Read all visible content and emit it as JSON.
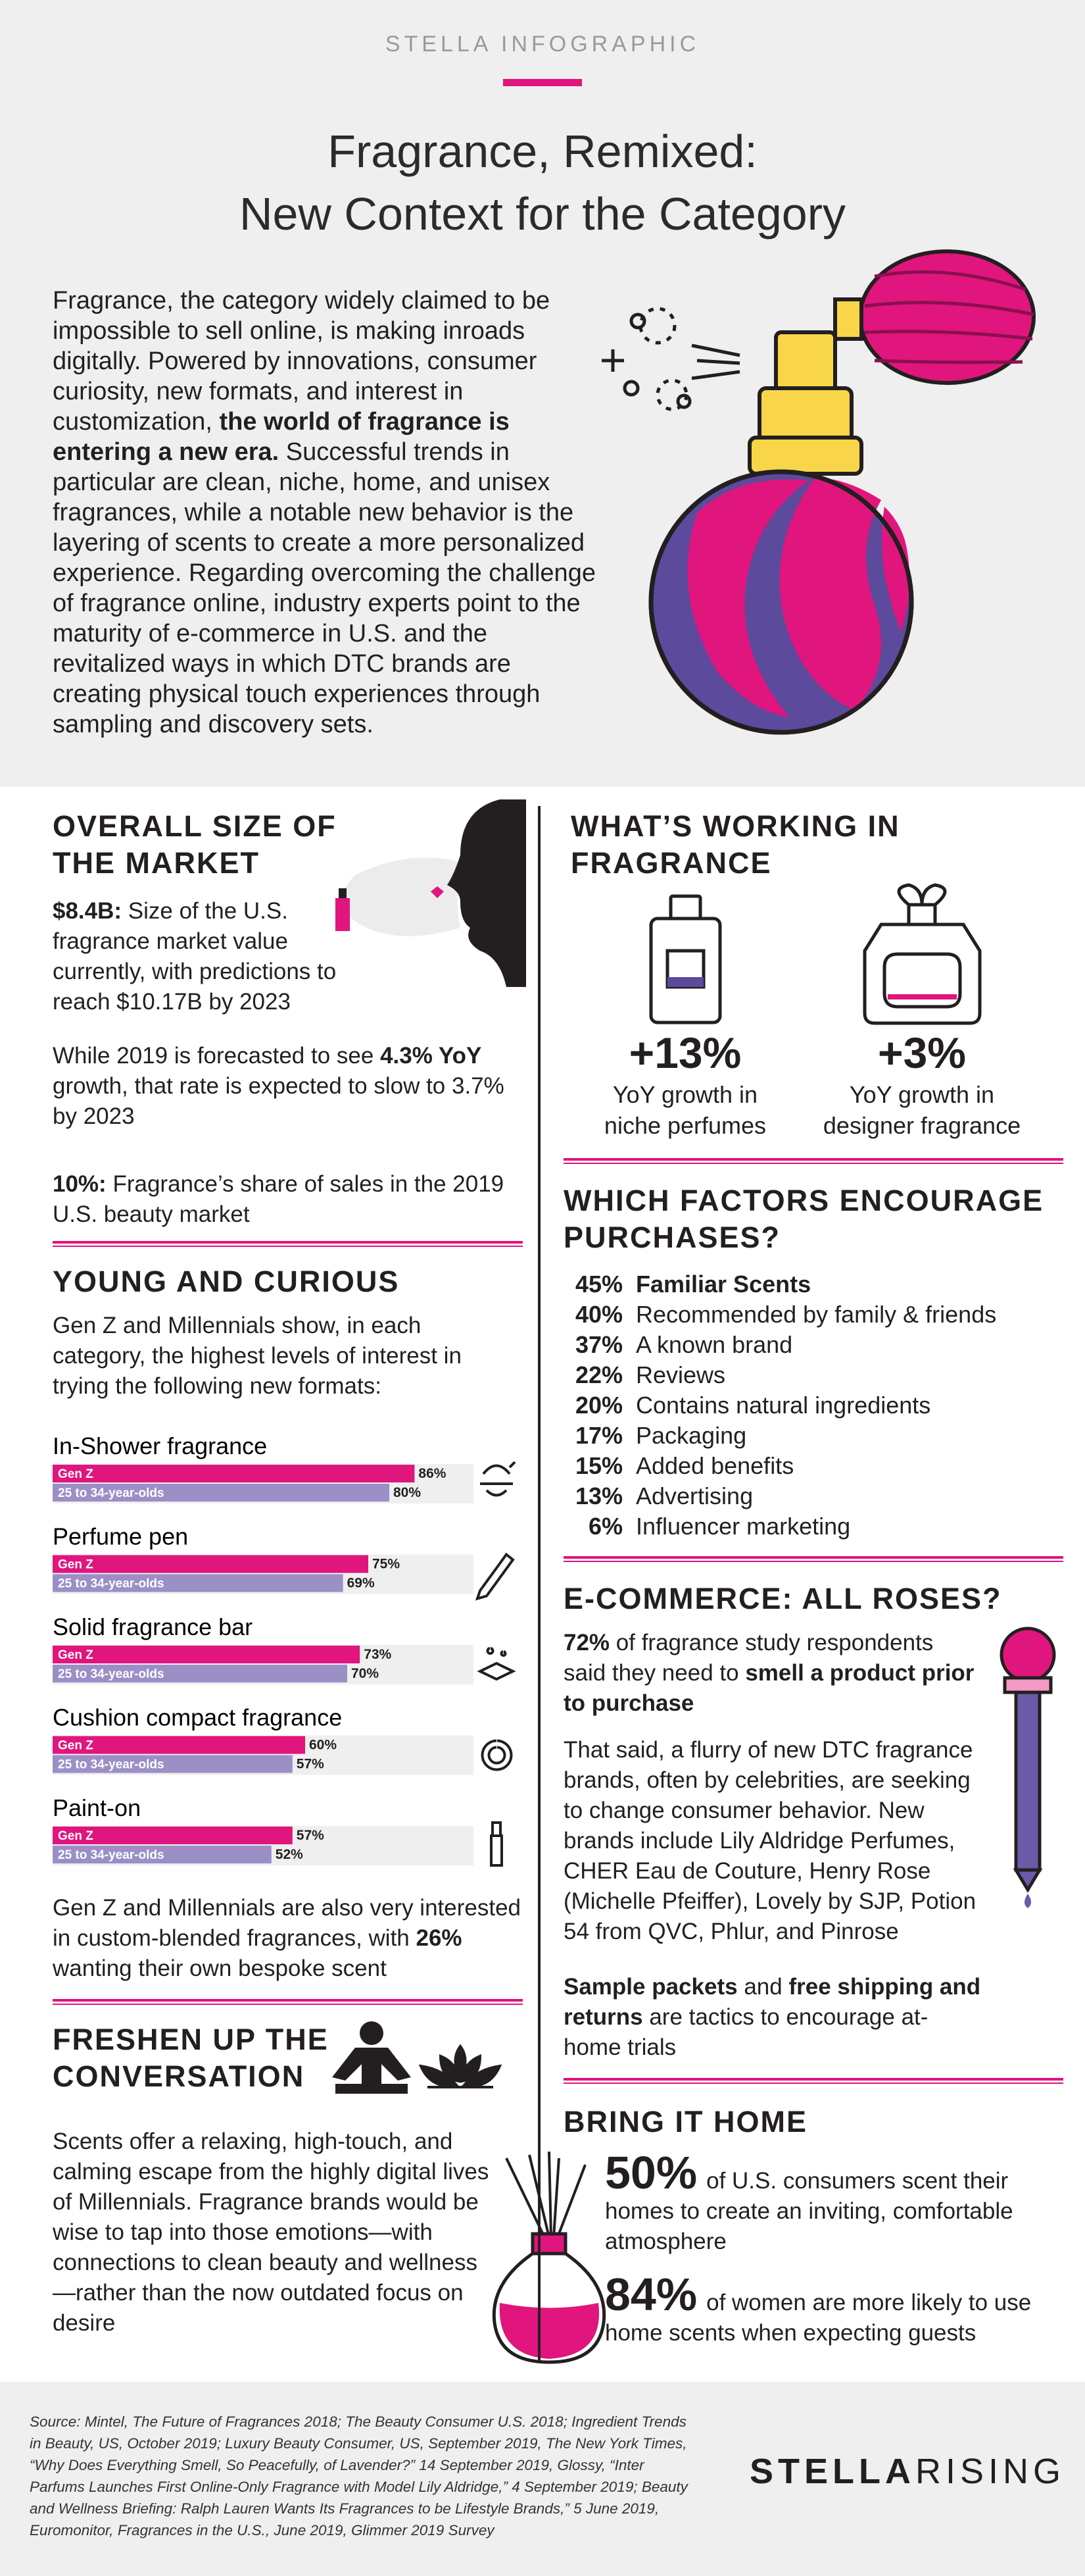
{
  "header": {
    "brand": "STELLA INFOGRAPHIC",
    "title_lines": [
      "Fragrance, Remixed:",
      "New Context for the Category"
    ],
    "intro": [
      "Fragrance, the category widely claimed to be impossible to sell online, is making inroads digitally. Powered by innovations, consumer curiosity, new formats, and interest in customization, ",
      {
        "strong": "the world of fragrance is entering a new era."
      },
      " Successful trends in particular are clean, niche, home, and unisex fragrances, while a notable new behavior is the layering of scents to create a more personalized experience. Regarding overcoming the challenge of fragrance online, industry experts point to the maturity of e-commerce in U.S. and the revitalized ways in which DTC brands are creating physical touch experiences through sampling and discovery sets."
    ]
  },
  "market": {
    "heading_lines": [
      "OVERALL SIZE OF",
      "THE MARKET"
    ],
    "paragraphs": [
      [
        {
          "strong": "$8.4B:"
        },
        " Size of the U.S. fragrance market value currently, with predictions to reach $10.17B by 2023"
      ],
      [
        "While 2019 is forecasted to see ",
        {
          "strong": "4.3% YoY"
        },
        " growth, that rate is expected to slow to 3.7% by 2023"
      ],
      [
        {
          "strong": "10%:"
        },
        " Fragrance’s share of sales in the 2019 U.S. beauty market"
      ]
    ]
  },
  "young": {
    "heading": "YOUNG AND CURIOUS",
    "intro": [
      "Gen Z and Millennials show, in each category, the highest levels of interest in trying the following new formats:"
    ],
    "series": [
      "Gen Z",
      "25 to 34-year-olds"
    ],
    "formats": [
      {
        "name": "In-Shower fragrance",
        "values": [
          86,
          80
        ],
        "value_labels": [
          "86%",
          "80%"
        ]
      },
      {
        "name": "Perfume pen",
        "values": [
          75,
          69
        ],
        "value_labels": [
          "75%",
          "69%"
        ]
      },
      {
        "name": "Solid fragrance bar",
        "values": [
          73,
          70
        ],
        "value_labels": [
          "73%",
          "70%"
        ]
      },
      {
        "name": "Cushion compact fragrance",
        "values": [
          60,
          57
        ],
        "value_labels": [
          "60%",
          "57%"
        ]
      },
      {
        "name": "Paint-on",
        "values": [
          57,
          52
        ],
        "value_labels": [
          "57%",
          "52%"
        ]
      }
    ],
    "note": [
      "Gen Z and Millennials are also very interested in custom-blended fragrances, with ",
      {
        "strong": "26%"
      },
      " wanting their own bespoke scent"
    ]
  },
  "freshen": {
    "heading_lines": [
      "FRESHEN UP THE",
      "CONVERSATION"
    ],
    "text": [
      "Scents offer a relaxing, high-touch, and calming escape from the highly digital lives of Millennials. Fragrance brands would be wise to tap into those emotions—with connections to clean beauty and wellness—rather than the now outdated focus on desire"
    ]
  },
  "working": {
    "heading_lines": [
      "WHAT’S WORKING IN",
      "FRAGRANCE"
    ],
    "stats": [
      {
        "value": "+13%",
        "lines": [
          "YoY growth in",
          "niche perfumes"
        ]
      },
      {
        "value": "+3%",
        "lines": [
          "YoY growth in",
          "designer fragrance"
        ]
      }
    ]
  },
  "factors": {
    "heading_lines": [
      "WHICH FACTORS ENCOURAGE",
      "PURCHASES?"
    ],
    "items": [
      {
        "pct": "45%",
        "label": "Familiar Scents"
      },
      {
        "pct": "40%",
        "label": "Recommended by family & friends"
      },
      {
        "pct": "37%",
        "label": "A known brand"
      },
      {
        "pct": "22%",
        "label": "Reviews"
      },
      {
        "pct": "20%",
        "label": "Contains natural ingredients"
      },
      {
        "pct": "17%",
        "label": "Packaging"
      },
      {
        "pct": "15%",
        "label": "Added benefits"
      },
      {
        "pct": "13%",
        "label": "Advertising"
      },
      {
        "pct": "6%",
        "label": "Influencer marketing"
      }
    ]
  },
  "ecommerce": {
    "heading": "E-COMMERCE: ALL ROSES?",
    "paragraphs": [
      [
        {
          "strong": "72%"
        },
        " of fragrance study respondents said they need to ",
        {
          "strong": "smell a product prior to purchase"
        }
      ],
      [
        "That said, a flurry of new DTC fragrance brands, often by celebrities, are seeking to change consumer behavior. New brands include Lily Aldridge Perfumes, CHER Eau de Couture, Henry Rose (Michelle Pfeiffer), Lovely by SJP, Potion 54 from QVC, Phlur, and Pinrose"
      ],
      [
        {
          "strong": "Sample packets"
        },
        " and ",
        {
          "strong": "free shipping and returns"
        },
        " are tactics to encourage at-home trials"
      ]
    ]
  },
  "home": {
    "heading": "BRING IT HOME",
    "items": [
      {
        "figure": "50%",
        "text": "of U.S. consumers scent their homes to create an inviting, comfortable atmosphere"
      },
      {
        "figure": "84%",
        "text": "of women are more likely to use home scents when expecting guests"
      }
    ]
  },
  "footer": {
    "source": "Source: Mintel, The Future of Fragrances 2018; The Beauty Consumer U.S. 2018; Ingredient Trends in Beauty, US, October 2019; Luxury Beauty Consumer, US, September 2019, The New York Times, “Why Does Everything Smell, So Peacefully, of Lavender?” 14 September 2019, Glossy, “Inter Parfums Launches First Online-Only Fragrance with Model Lily Aldridge,” 4 September 2019; Beauty and Wellness Briefing: Ralph Lauren Wants Its Fragrances to be Lifestyle Brands,” 5 June 2019, Euromonitor, Fragrances in the U.S., June 2019, Glimmer 2019 Survey",
    "logo": [
      "STELLA",
      "RISING"
    ]
  }
}
